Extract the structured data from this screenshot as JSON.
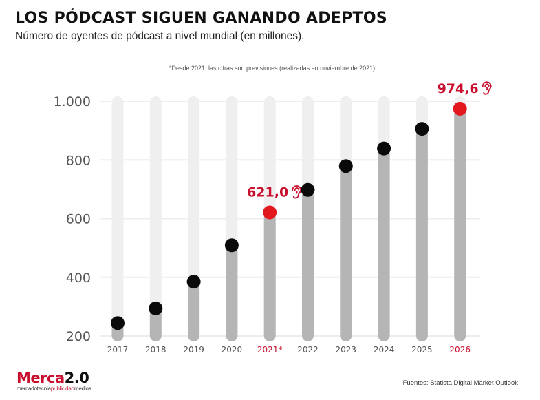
{
  "header": {
    "title": "LOS PÓDCAST SIGUEN GANANDO ADEPTOS",
    "subtitle": "Número de oyentes de pódcast a nivel mundial (en millones).",
    "note": "*Desde 2021, las cifras son previsiones (realizadas en noviembre de 2021)."
  },
  "footer": {
    "logo_brand": "Merca",
    "logo_version": "2.0",
    "logo_sub_1": "mercadotecnia",
    "logo_sub_2": "publicidad",
    "logo_sub_3": "medios",
    "source": "Fuentes: Statista Digital Market Outlook"
  },
  "colors": {
    "track": "#efefef",
    "bar": "#b5b5b5",
    "dot": "#0a0a0a",
    "highlight": "#e3171e",
    "highlight_text": "#c8102e",
    "grid": "#ededed"
  },
  "chart_data": {
    "type": "bar",
    "title": "LOS PÓDCAST SIGUEN GANANDO ADEPTOS",
    "subtitle": "Número de oyentes de pódcast a nivel mundial (en millones).",
    "xlabel": "",
    "ylabel": "",
    "categories": [
      "2017",
      "2018",
      "2019",
      "2020",
      "2021*",
      "2022",
      "2023",
      "2024",
      "2025",
      "2026"
    ],
    "values": [
      244,
      294,
      385,
      509,
      621.0,
      698,
      779,
      839,
      906,
      974.6
    ],
    "highlighted": [
      4,
      9
    ],
    "data_labels": [
      {
        "index": 4,
        "text": "621,0"
      },
      {
        "index": 9,
        "text": "974,6"
      }
    ],
    "yticks": [
      200,
      400,
      600,
      800,
      1000
    ],
    "ytick_labels": [
      "200",
      "400",
      "600",
      "800",
      "1.000"
    ],
    "ylim": [
      200,
      1000
    ],
    "grid": true,
    "legend": "none"
  }
}
